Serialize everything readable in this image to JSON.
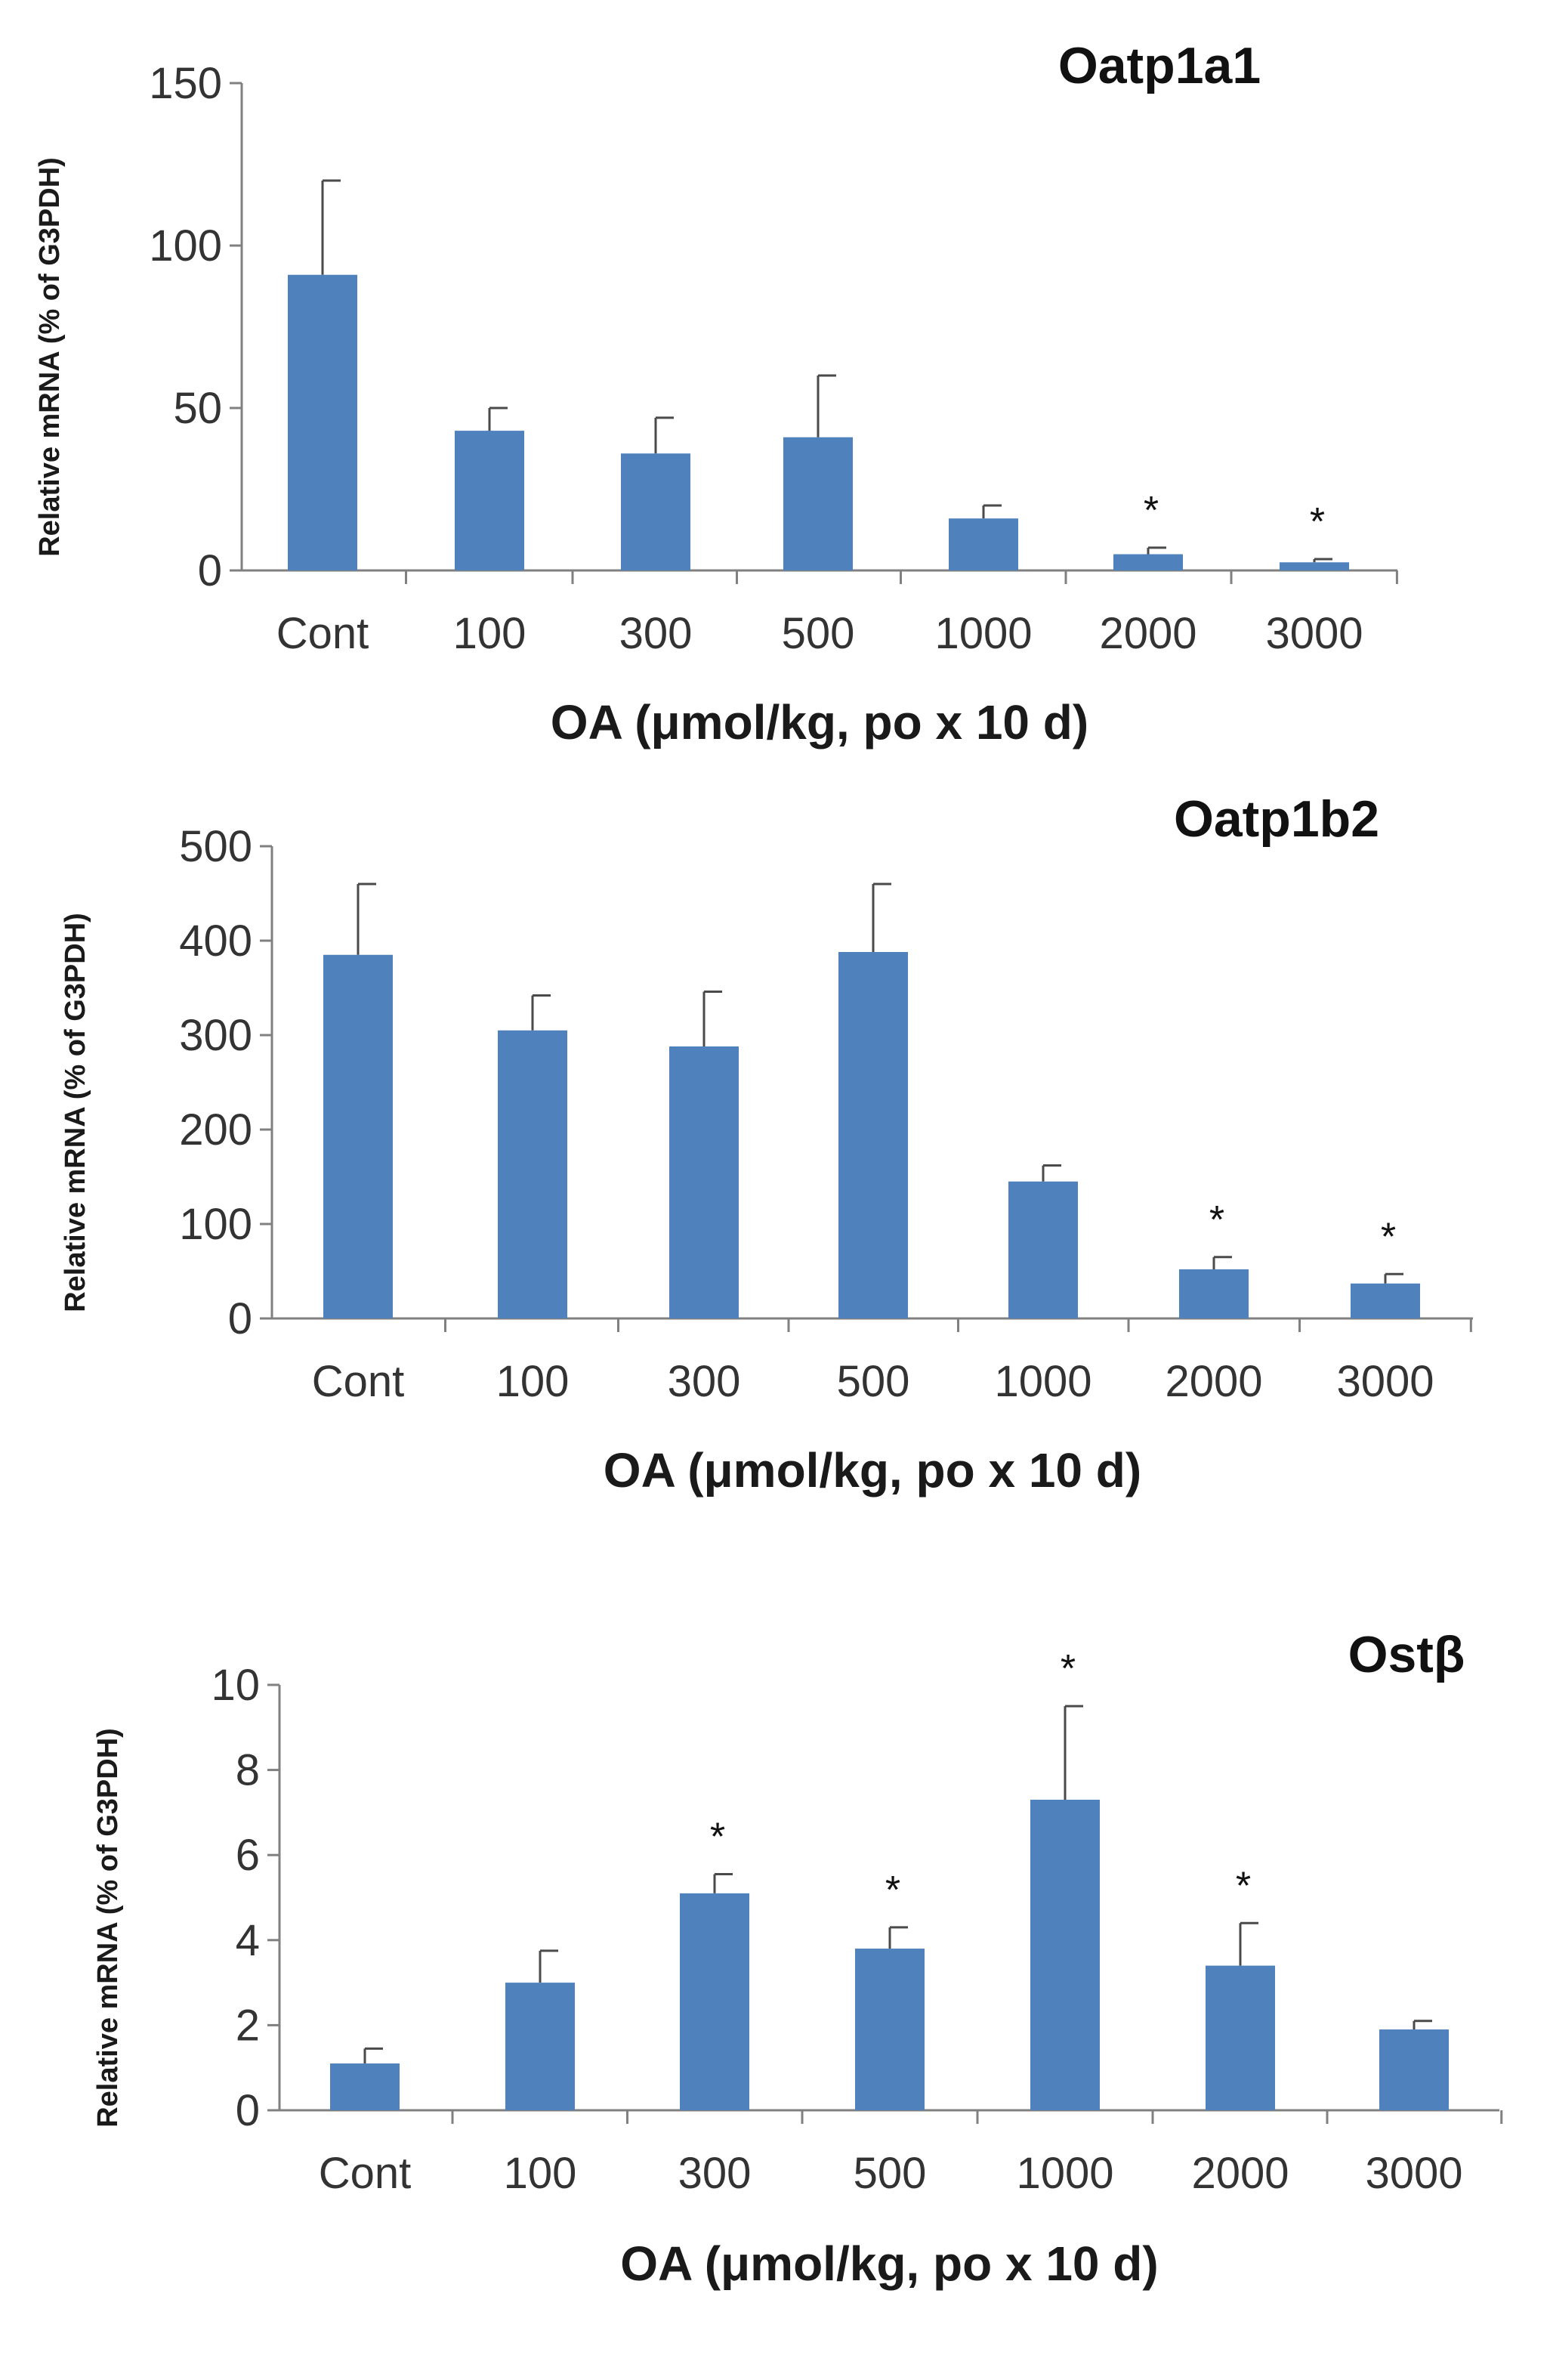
{
  "chart_data": [
    {
      "type": "bar",
      "title": "Oatp1a1",
      "xlabel": "OA (μmol/kg, po x 10 d)",
      "ylabel": "Relative mRNA (% of G3PDH)",
      "ylim": [
        0,
        150
      ],
      "yticks": [
        0,
        50,
        100,
        150
      ],
      "categories": [
        "Cont",
        "100",
        "300",
        "500",
        "1000",
        "2000",
        "3000"
      ],
      "values": [
        91,
        43,
        36,
        41,
        16,
        5,
        2.5
      ],
      "errors": [
        29,
        7,
        11,
        19,
        4,
        2,
        1
      ],
      "significance": [
        "",
        "",
        "",
        "",
        "",
        "*",
        "*"
      ],
      "bar_color": "#4f81bd"
    },
    {
      "type": "bar",
      "title": "Oatp1b2",
      "xlabel": "OA (μmol/kg, po x 10 d)",
      "ylabel": "Relative mRNA (% of G3PDH)",
      "ylim": [
        0,
        500
      ],
      "yticks": [
        0,
        100,
        200,
        300,
        400,
        500
      ],
      "categories": [
        "Cont",
        "100",
        "300",
        "500",
        "1000",
        "2000",
        "3000"
      ],
      "values": [
        385,
        305,
        288,
        388,
        145,
        52,
        37
      ],
      "errors": [
        75,
        37,
        58,
        72,
        17,
        13,
        10
      ],
      "significance": [
        "",
        "",
        "",
        "",
        "",
        "*",
        "*"
      ],
      "bar_color": "#4f81bd"
    },
    {
      "type": "bar",
      "title": "Ostβ",
      "xlabel": "OA (μmol/kg, po x 10 d)",
      "ylabel": "Relative mRNA (% of G3PDH)",
      "ylim": [
        0,
        10
      ],
      "yticks": [
        0,
        2,
        4,
        6,
        8,
        10
      ],
      "categories": [
        "Cont",
        "100",
        "300",
        "500",
        "1000",
        "2000",
        "3000"
      ],
      "values": [
        1.1,
        3.0,
        5.1,
        3.8,
        7.3,
        3.4,
        1.9
      ],
      "errors": [
        0.35,
        0.75,
        0.45,
        0.5,
        2.2,
        1.0,
        0.2
      ],
      "significance": [
        "",
        "",
        "*",
        "*",
        "*",
        "*",
        ""
      ],
      "bar_color": "#4f81bd"
    }
  ]
}
